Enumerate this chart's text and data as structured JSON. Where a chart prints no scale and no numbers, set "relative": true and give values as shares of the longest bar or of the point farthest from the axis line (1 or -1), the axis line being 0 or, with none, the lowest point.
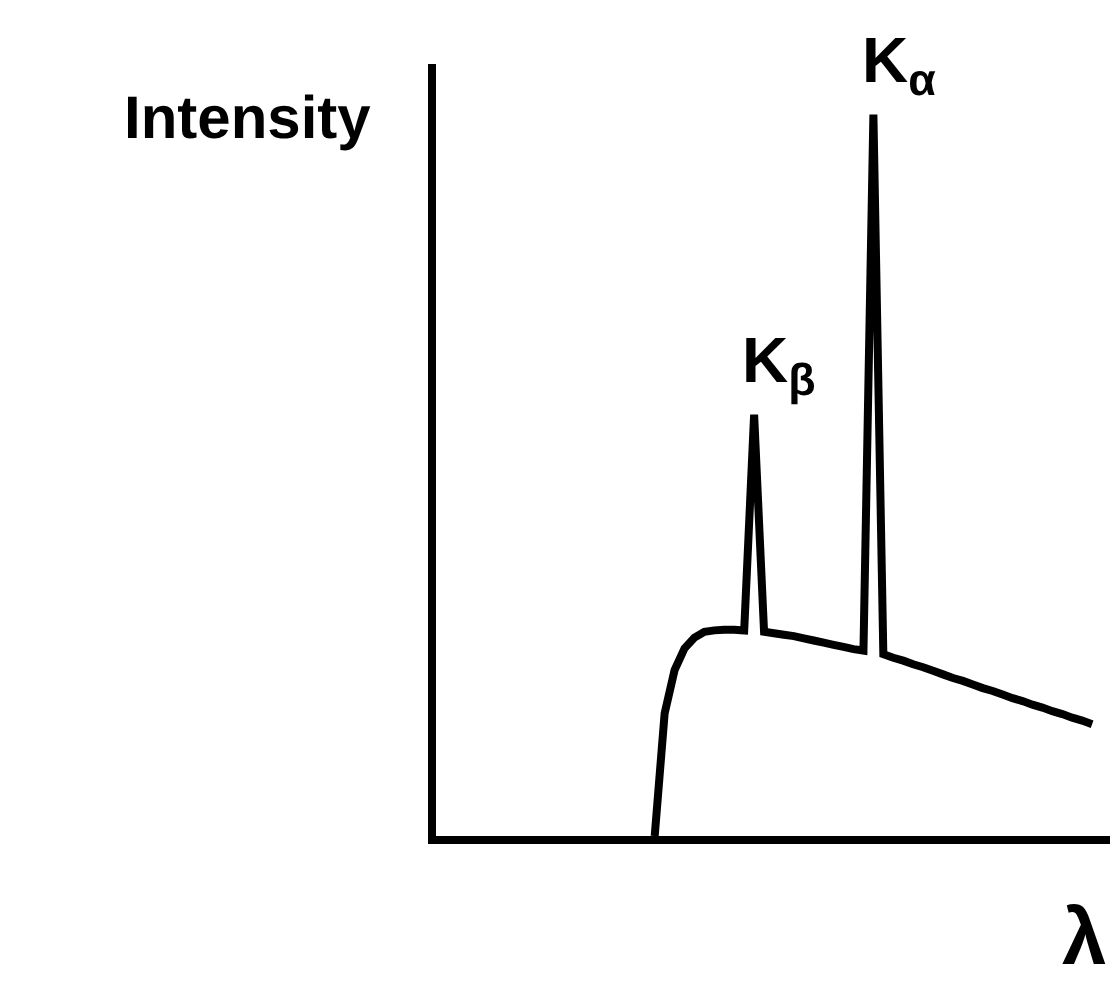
{
  "chart_data": {
    "type": "line",
    "relative": true,
    "ylabel": "Intensity",
    "xlabel": "λ",
    "marker": "none",
    "line_style": "solid",
    "categories": [
      null,
      null,
      null,
      null,
      null,
      null,
      null,
      null,
      null,
      null,
      null,
      null,
      null,
      null,
      null,
      null,
      null,
      null,
      null,
      null,
      null,
      null,
      null,
      null,
      null,
      null,
      null,
      null,
      null,
      null,
      null,
      null,
      null,
      null,
      null,
      null,
      null,
      null,
      null,
      null,
      null,
      null,
      null,
      null,
      null,
      null,
      null,
      null,
      null,
      null,
      null,
      null,
      null,
      null,
      null,
      null,
      null,
      null,
      null,
      null,
      null,
      null,
      null,
      null,
      null,
      null,
      null,
      null
    ],
    "series": [
      {
        "color": "#000000",
        "values": [
          null,
          null,
          null,
          null,
          null,
          null,
          null,
          null,
          null,
          null,
          null,
          null,
          null,
          null,
          null,
          null,
          null,
          null,
          null,
          null,
          null,
          null,
          0,
          0.17,
          0.23,
          0.26,
          0.275,
          0.283,
          0.285,
          0.286,
          0.286,
          0.285,
          0.584,
          0.283,
          0.281,
          0.279,
          0.277,
          0.274,
          0.271,
          0.268,
          0.265,
          0.262,
          0.259,
          0.257,
          1,
          0.252,
          0.247,
          0.243,
          0.238,
          0.234,
          0.229,
          0.224,
          0.219,
          0.215,
          0.21,
          0.205,
          0.201,
          0.196,
          0.191,
          0.187,
          0.182,
          0.178,
          0.173,
          0.169,
          0.164,
          0.16,
          0.155,
          null
        ]
      }
    ],
    "annotations": [
      "K$_{β}$",
      "K$_{α}$"
    ]
  }
}
